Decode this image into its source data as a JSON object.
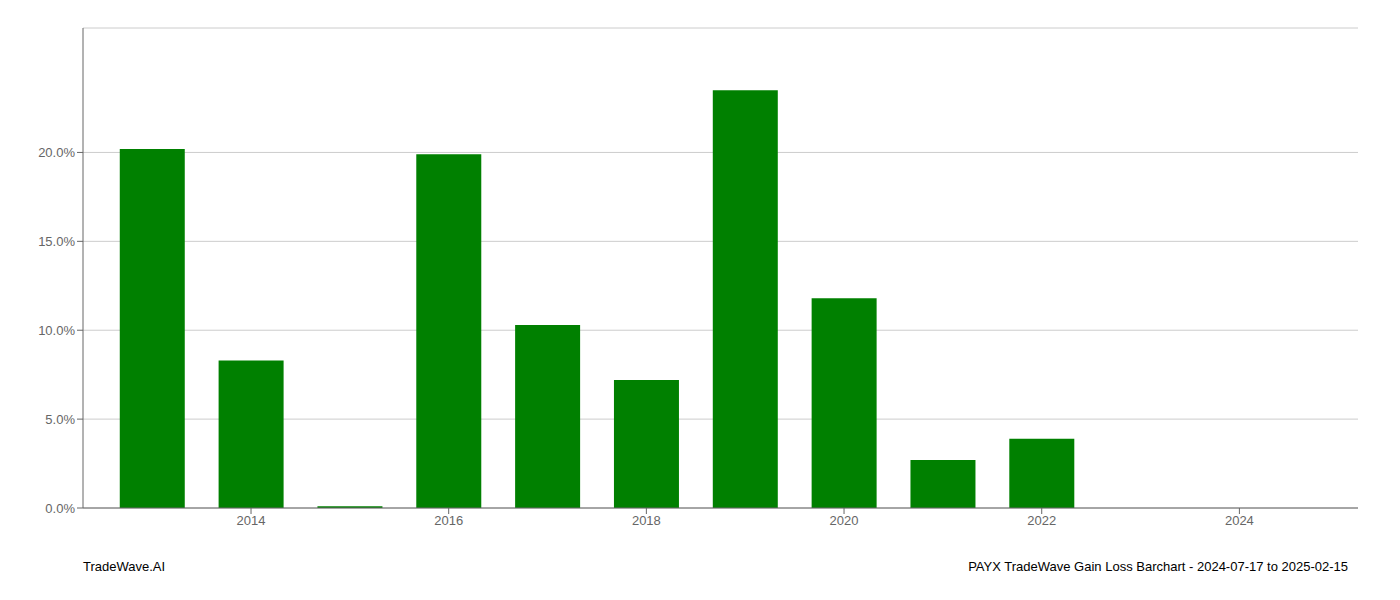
{
  "chart_data": {
    "type": "bar",
    "x": [
      2013,
      2014,
      2015,
      2016,
      2017,
      2018,
      2019,
      2020,
      2021,
      2022,
      2023
    ],
    "values": [
      0.202,
      0.083,
      0.001,
      0.199,
      0.103,
      0.072,
      0.235,
      0.118,
      0.027,
      0.039,
      0.0
    ],
    "color": "#008000",
    "xlim": [
      2012.3,
      2025.2
    ],
    "xticks": [
      2014,
      2016,
      2018,
      2020,
      2022,
      2024
    ],
    "ylim": [
      0,
      0.27
    ],
    "yticks": [
      {
        "value": 0.0,
        "label": "0.0%"
      },
      {
        "value": 0.05,
        "label": "5.0%"
      },
      {
        "value": 0.1,
        "label": "10.0%"
      },
      {
        "value": 0.15,
        "label": "15.0%"
      },
      {
        "value": 0.2,
        "label": "20.0%"
      }
    ],
    "grid": true,
    "annotations": [
      "TradeWave.AI",
      "PAYX TradeWave Gain Loss Barchart - 2024-07-17 to 2025-02-15"
    ]
  }
}
